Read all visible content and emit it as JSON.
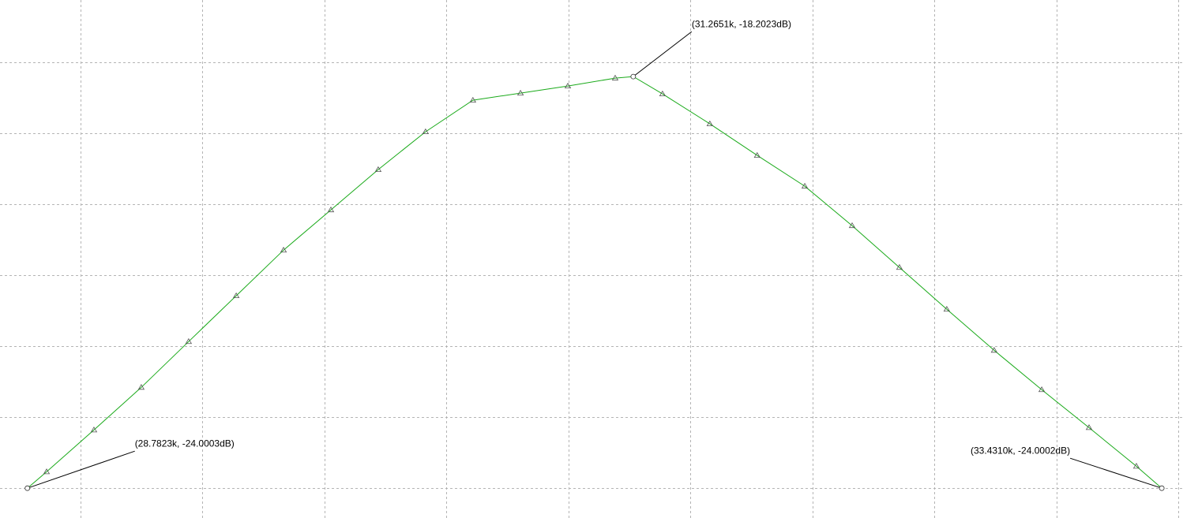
{
  "chart_data": {
    "type": "line",
    "x": [
      28.7823,
      28.861,
      29.055,
      29.249,
      29.443,
      29.638,
      29.832,
      30.026,
      30.22,
      30.414,
      30.608,
      30.803,
      30.997,
      31.191,
      31.2651,
      31.385,
      31.579,
      31.773,
      31.968,
      32.162,
      32.356,
      32.55,
      32.744,
      32.939,
      33.133,
      33.327,
      33.431
    ],
    "series": [
      {
        "color": "#1aaa1a",
        "values": [
          -24.0003,
          -23.769,
          -23.18,
          -22.58,
          -21.935,
          -21.29,
          -20.647,
          -20.08,
          -19.513,
          -18.98,
          -18.536,
          -18.436,
          -18.336,
          -18.224,
          -18.2023,
          -18.447,
          -18.869,
          -19.313,
          -19.747,
          -20.302,
          -20.891,
          -21.48,
          -22.058,
          -22.613,
          -23.147,
          -23.691,
          -24.0002
        ]
      }
    ],
    "annotations": [
      {
        "x": 28.7823,
        "y": -24.0003,
        "text": "(28.7823k, -24.0003dB)"
      },
      {
        "x": 31.2651,
        "y": -18.2023,
        "text": "(31.2651k, -18.2023dB)"
      },
      {
        "x": 33.431,
        "y": -24.0002,
        "text": "(33.4310k, -24.0002dB)"
      }
    ],
    "xlim": [
      28.67,
      33.518
    ],
    "ylim": [
      -24.42,
      -17.124
    ],
    "xticks": [
      29,
      29.5,
      30,
      30.5,
      31,
      31.5,
      32,
      32.5,
      33,
      33.5
    ],
    "yticks": [
      -24,
      -23,
      -22,
      -21,
      -20,
      -19,
      -18
    ],
    "grid": true
  }
}
